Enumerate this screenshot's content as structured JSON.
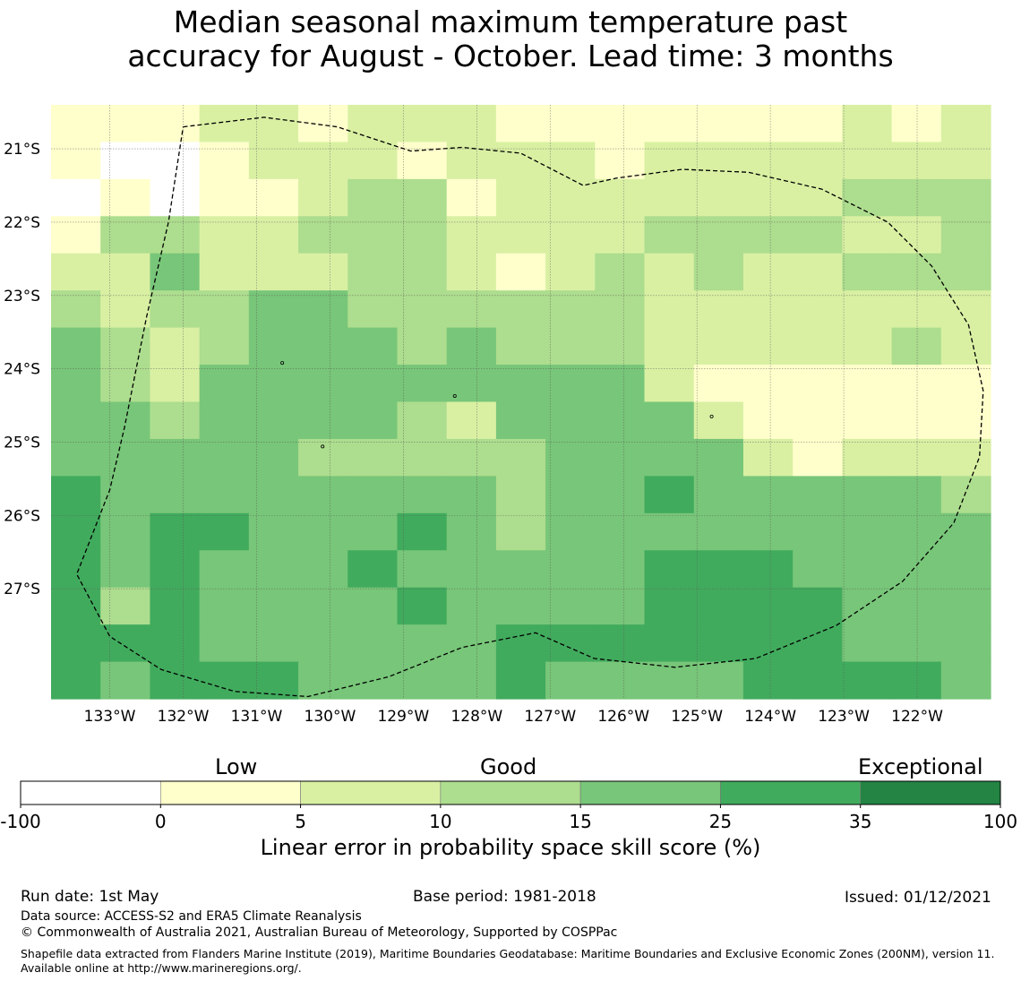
{
  "title": {
    "line1": "Median seasonal maximum temperature past",
    "line2": "accuracy for August - October. Lead time: 3 months"
  },
  "map": {
    "lat_ticks": [
      "21°S",
      "22°S",
      "23°S",
      "24°S",
      "25°S",
      "26°S",
      "27°S"
    ],
    "lon_ticks": [
      "133°W",
      "132°W",
      "131°W",
      "130°W",
      "129°W",
      "128°W",
      "127°W",
      "126°W",
      "125°W",
      "124°W",
      "123°W",
      "122°W"
    ],
    "lat_range": [
      -28.5,
      -20.4
    ],
    "lon_range": [
      -133.8,
      -121.0
    ],
    "grid_lines": true,
    "boundary_style": "dashed",
    "cell_classes_note_legend": "class index: 0=[-100,0) 1=[0,5) 2=[5,10) 3=[10,15) 4=[15,25) 5=[25,35) 6=[35,100]",
    "grid": [
      [
        1,
        1,
        1,
        2,
        2,
        1,
        2,
        2,
        2,
        1,
        1,
        1,
        1,
        1,
        1,
        1,
        2,
        1,
        2
      ],
      [
        1,
        0,
        0,
        1,
        2,
        2,
        2,
        1,
        2,
        2,
        2,
        1,
        2,
        2,
        2,
        2,
        2,
        2,
        2
      ],
      [
        0,
        1,
        0,
        1,
        1,
        2,
        3,
        3,
        1,
        2,
        2,
        2,
        2,
        2,
        2,
        2,
        3,
        3,
        3
      ],
      [
        1,
        3,
        3,
        2,
        2,
        3,
        3,
        3,
        2,
        2,
        2,
        2,
        3,
        3,
        3,
        3,
        2,
        2,
        3
      ],
      [
        2,
        2,
        4,
        2,
        2,
        2,
        3,
        3,
        2,
        1,
        2,
        3,
        2,
        3,
        2,
        2,
        3,
        3,
        3
      ],
      [
        3,
        2,
        3,
        3,
        4,
        4,
        3,
        3,
        3,
        3,
        3,
        3,
        2,
        2,
        2,
        2,
        2,
        2,
        2
      ],
      [
        4,
        3,
        2,
        3,
        4,
        4,
        4,
        3,
        4,
        3,
        3,
        3,
        2,
        2,
        2,
        2,
        2,
        3,
        2
      ],
      [
        4,
        3,
        2,
        4,
        4,
        4,
        4,
        4,
        4,
        4,
        4,
        4,
        2,
        1,
        1,
        1,
        1,
        1,
        1
      ],
      [
        4,
        4,
        3,
        4,
        4,
        4,
        4,
        3,
        2,
        4,
        4,
        4,
        4,
        2,
        1,
        1,
        1,
        1,
        1
      ],
      [
        4,
        4,
        4,
        4,
        4,
        3,
        3,
        3,
        3,
        3,
        4,
        4,
        4,
        4,
        2,
        1,
        2,
        2,
        2
      ],
      [
        5,
        4,
        4,
        4,
        4,
        4,
        4,
        4,
        4,
        3,
        4,
        4,
        5,
        4,
        4,
        4,
        4,
        4,
        3
      ],
      [
        5,
        4,
        5,
        5,
        4,
        4,
        4,
        5,
        4,
        3,
        4,
        4,
        4,
        4,
        4,
        4,
        4,
        4,
        4
      ],
      [
        5,
        4,
        5,
        4,
        4,
        4,
        5,
        4,
        4,
        4,
        4,
        4,
        5,
        5,
        5,
        4,
        4,
        4,
        4
      ],
      [
        5,
        3,
        5,
        4,
        4,
        4,
        4,
        5,
        4,
        4,
        4,
        4,
        5,
        5,
        5,
        5,
        4,
        4,
        4
      ],
      [
        5,
        5,
        5,
        4,
        4,
        4,
        4,
        4,
        4,
        5,
        5,
        5,
        5,
        5,
        5,
        5,
        4,
        4,
        4
      ],
      [
        5,
        4,
        5,
        5,
        5,
        4,
        4,
        4,
        4,
        5,
        4,
        4,
        4,
        4,
        5,
        5,
        5,
        5,
        4
      ]
    ],
    "boundary_path_lonlat": [
      [
        -132.0,
        -20.7
      ],
      [
        -130.9,
        -20.57
      ],
      [
        -129.9,
        -20.7
      ],
      [
        -128.9,
        -21.03
      ],
      [
        -128.2,
        -20.98
      ],
      [
        -127.4,
        -21.06
      ],
      [
        -126.55,
        -21.5
      ],
      [
        -126.1,
        -21.4
      ],
      [
        -125.2,
        -21.28
      ],
      [
        -124.3,
        -21.32
      ],
      [
        -123.3,
        -21.55
      ],
      [
        -122.4,
        -22.0
      ],
      [
        -121.8,
        -22.6
      ],
      [
        -121.3,
        -23.4
      ],
      [
        -121.1,
        -24.3
      ],
      [
        -121.15,
        -25.2
      ],
      [
        -121.5,
        -26.1
      ],
      [
        -122.2,
        -26.9
      ],
      [
        -123.1,
        -27.5
      ],
      [
        -124.2,
        -27.95
      ],
      [
        -125.3,
        -28.07
      ],
      [
        -126.4,
        -27.95
      ],
      [
        -127.2,
        -27.6
      ],
      [
        -128.2,
        -27.8
      ],
      [
        -129.2,
        -28.2
      ],
      [
        -130.3,
        -28.47
      ],
      [
        -131.3,
        -28.4
      ],
      [
        -132.3,
        -28.1
      ],
      [
        -133.0,
        -27.65
      ],
      [
        -133.45,
        -26.8
      ],
      [
        -133.0,
        -25.65
      ],
      [
        -132.8,
        -24.8
      ],
      [
        -132.5,
        -23.3
      ],
      [
        -132.2,
        -22.0
      ],
      [
        -132.0,
        -20.7
      ]
    ]
  },
  "legend": {
    "words": {
      "low": "Low",
      "good": "Good",
      "exceptional": "Exceptional"
    },
    "colors": [
      "#ffffff",
      "#ffffcc",
      "#d9f0a3",
      "#addd8e",
      "#78c679",
      "#41ab5d",
      "#238443"
    ],
    "ticks": [
      "-100",
      "0",
      "5",
      "10",
      "15",
      "25",
      "35",
      "100"
    ],
    "label": "Linear error in probability space skill score (%)"
  },
  "footer": {
    "run_date": "Run date: 1st May",
    "base_period": "Base period: 1981-2018",
    "issued": "Issued: 01/12/2021",
    "data_source": "Data source: ACCESS-S2 and ERA5 Climate Reanalysis",
    "copyright": "© Commonwealth of Australia 2021, Australian Bureau of Meteorology, Supported by COSPPac",
    "shapefile": "Shapefile data extracted from Flanders Marine Institute (2019), Maritime Boundaries Geodatabase: Maritime Boundaries and Exclusive Economic Zones (200NM), version 11. Available online at http://www.marineregions.org/."
  }
}
